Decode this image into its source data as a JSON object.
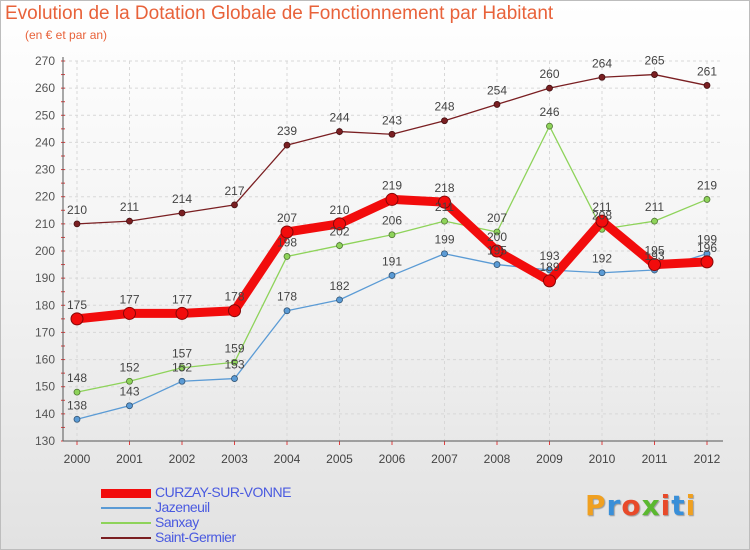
{
  "title": "Evolution de la Dotation Globale de Fonctionnement par Habitant",
  "subtitle": "(en € et par an)",
  "logo": {
    "letters": [
      "P",
      "r",
      "o",
      "x",
      "i",
      "t",
      "i"
    ]
  },
  "chart_data": {
    "type": "line",
    "categories": [
      "2000",
      "2001",
      "2002",
      "2003",
      "2004",
      "2005",
      "2006",
      "2007",
      "2008",
      "2009",
      "2010",
      "2011",
      "2012"
    ],
    "ylim": [
      130,
      270
    ],
    "yticks": [
      130,
      140,
      150,
      160,
      170,
      180,
      190,
      200,
      210,
      220,
      230,
      240,
      250,
      260,
      270
    ],
    "grid": true,
    "legend_position": "bottom-left",
    "series": [
      {
        "name": "Saint-Germier",
        "color": "#7a1f22",
        "emphasis": false,
        "values": [
          210,
          211,
          214,
          217,
          239,
          244,
          243,
          248,
          254,
          260,
          264,
          265,
          261
        ]
      },
      {
        "name": "Sanxay",
        "color": "#8ed35a",
        "emphasis": false,
        "values": [
          148,
          152,
          157,
          159,
          198,
          202,
          206,
          211,
          207,
          246,
          208,
          211,
          219
        ]
      },
      {
        "name": "Jazeneuil",
        "color": "#5b9bd5",
        "emphasis": false,
        "values": [
          138,
          143,
          152,
          153,
          178,
          182,
          191,
          199,
          195,
          193,
          192,
          193,
          199
        ]
      },
      {
        "name": "CURZAY-SUR-VONNE",
        "color": "#f20c0c",
        "emphasis": true,
        "values": [
          175,
          177,
          177,
          178,
          207,
          210,
          219,
          218,
          200,
          189,
          211,
          195,
          196
        ]
      }
    ],
    "legend_order": [
      "CURZAY-SUR-VONNE",
      "Jazeneuil",
      "Sanxay",
      "Saint-Germier"
    ]
  }
}
